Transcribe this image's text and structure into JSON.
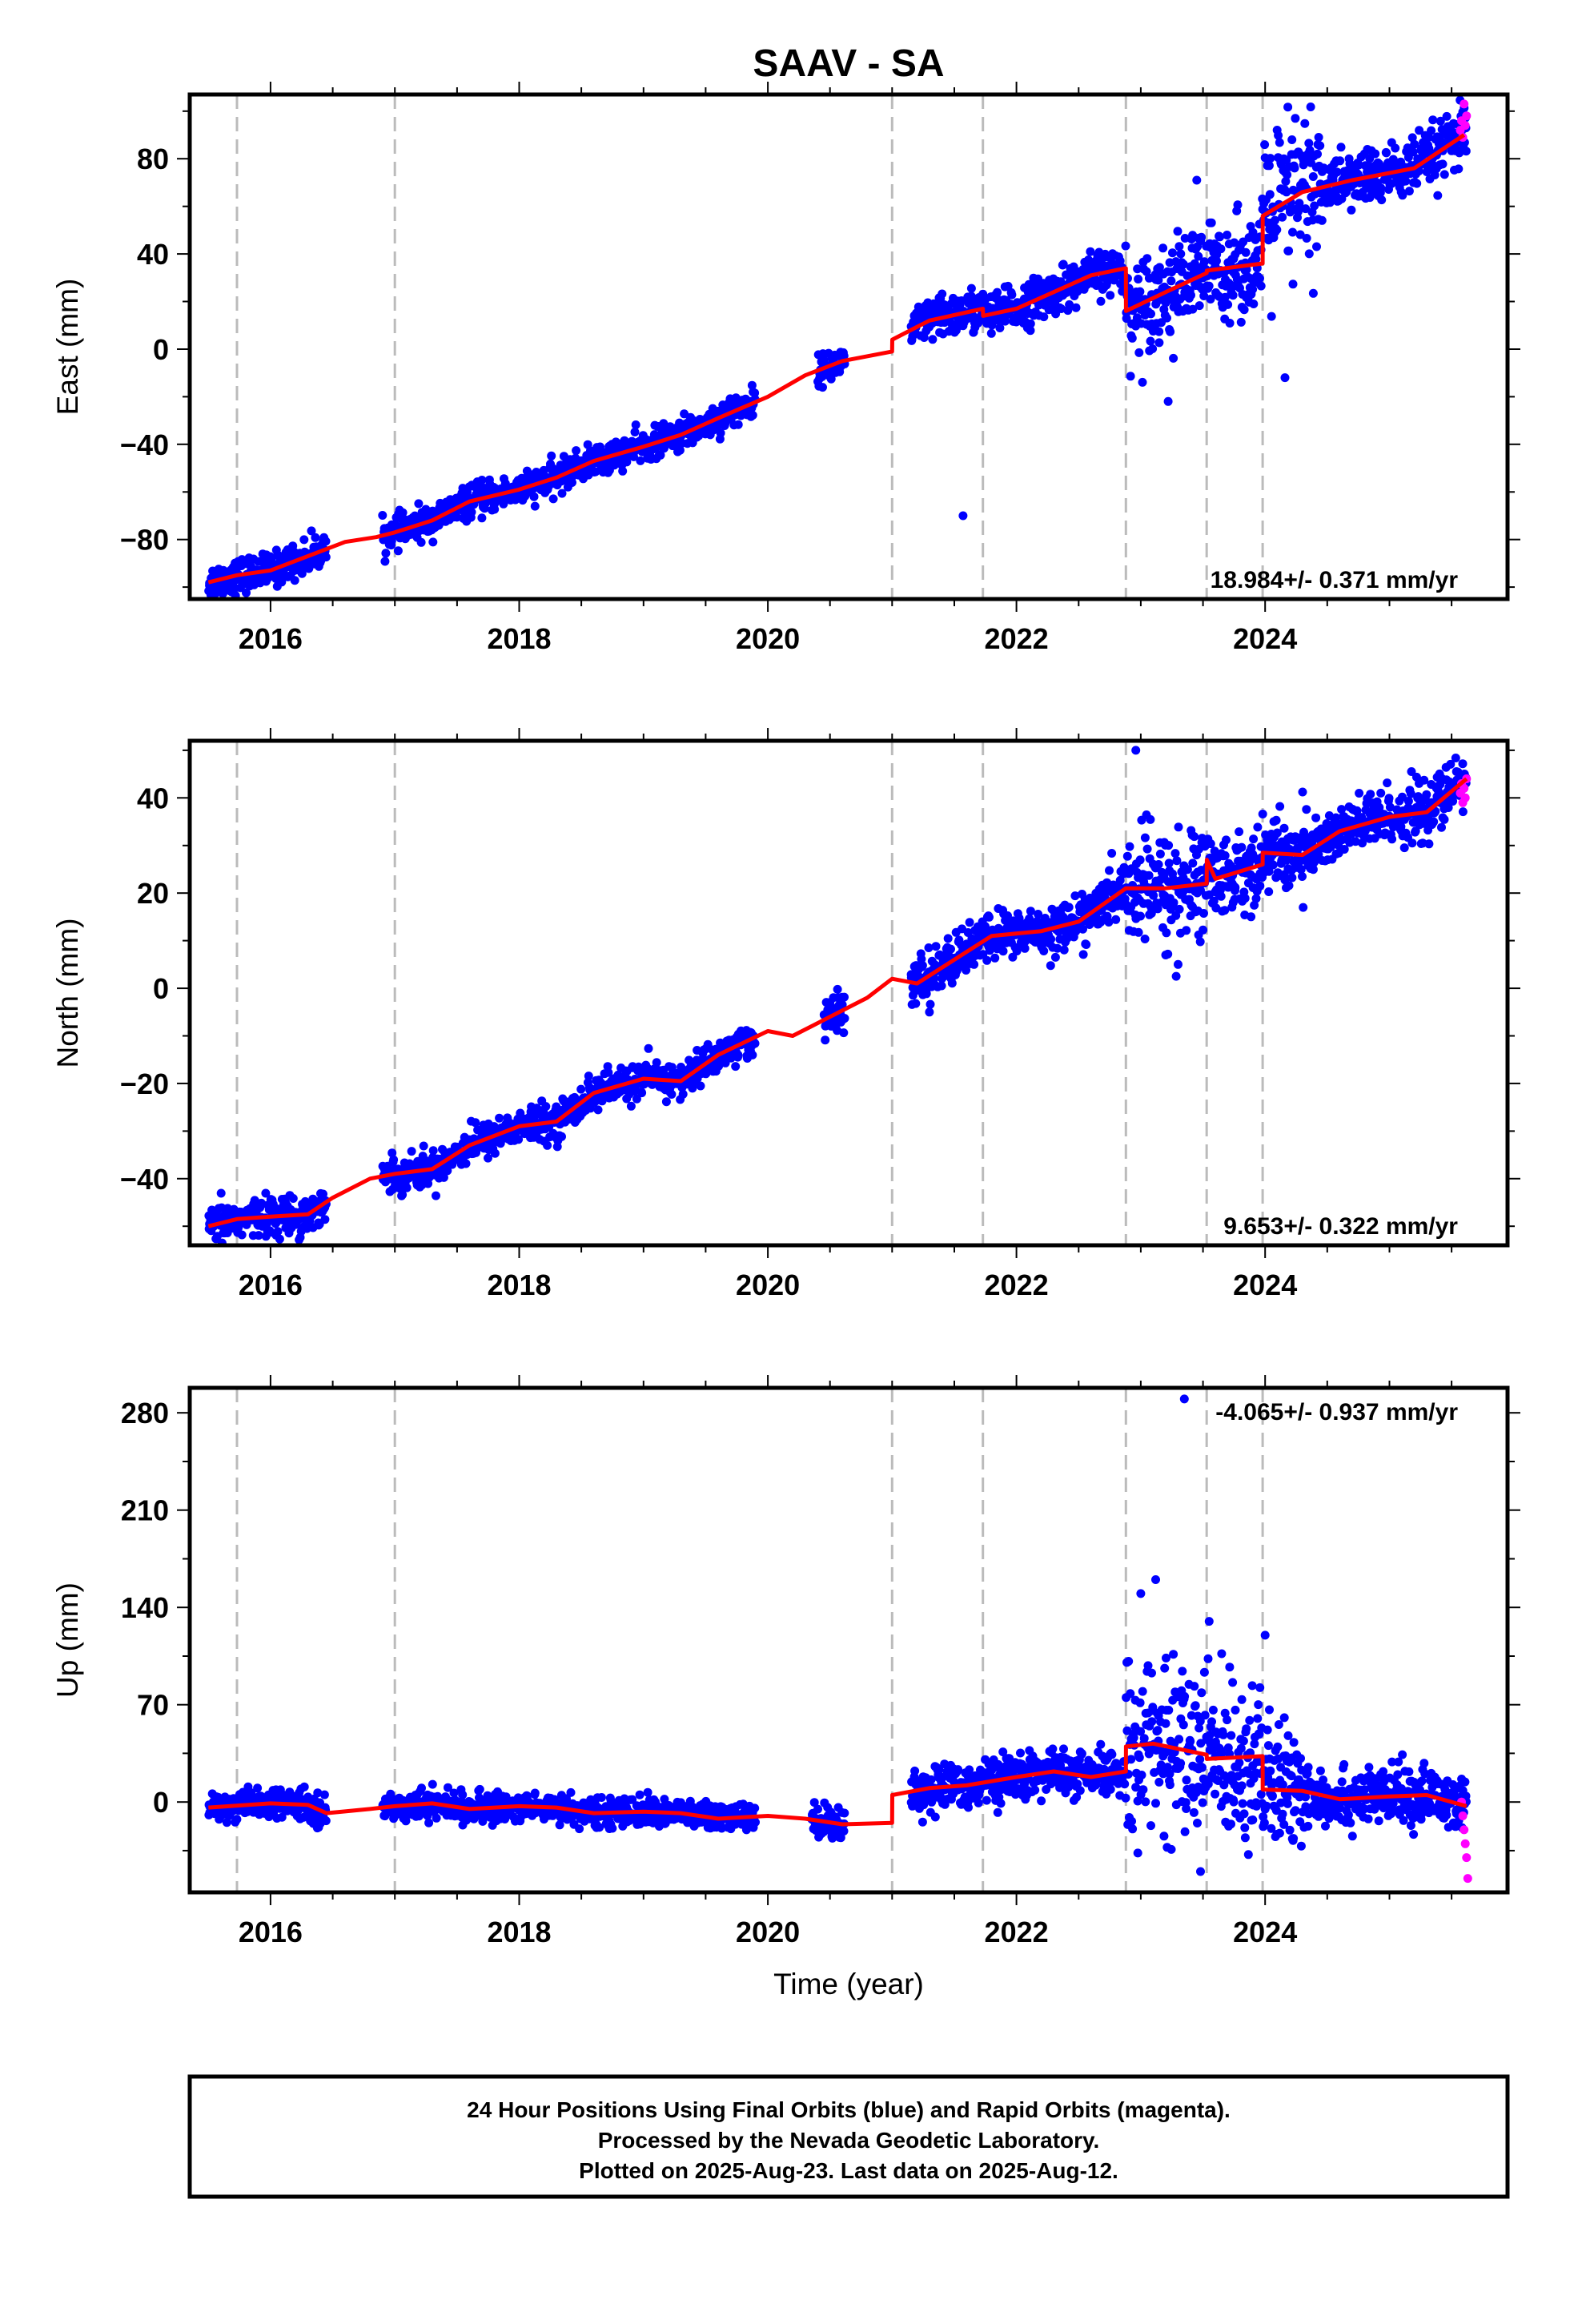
{
  "figure": {
    "title": "SAAV - SA",
    "x_axis_label": "Time (year)",
    "footer_lines": [
      "24 Hour Positions Using Final Orbits (blue) and Rapid Orbits (magenta).",
      "Processed by the Nevada Geodetic Laboratory.",
      "Plotted on 2025-Aug-23. Last data on 2025-Aug-12."
    ]
  },
  "colors": {
    "final_orbits": "#0000ff",
    "rapid_orbits": "#ff00ff",
    "model_fit": "#ff0000",
    "event_lines": "#bbbbbb",
    "frame": "#000000"
  },
  "chart_data": [
    {
      "type": "scatter",
      "component": "east",
      "ylabel": "East (mm)",
      "xlabel": "",
      "title": "",
      "xlim": [
        2015.35,
        2025.95
      ],
      "ylim": [
        -105,
        107
      ],
      "xticks": [
        "2016",
        "2018",
        "2020",
        "2022",
        "2024"
      ],
      "yticks": [
        "−80",
        "−40",
        "0",
        "40",
        "80"
      ],
      "ytick_values": [
        -80,
        -40,
        0,
        40,
        80
      ],
      "rate_label": "18.984+/- 0.371 mm/yr",
      "rate_position": "bottom-right",
      "event_lines": [
        2015.73,
        2017.0,
        2021.0,
        2021.73,
        2022.88,
        2023.53,
        2023.98
      ],
      "model_knots": [
        [
          2015.5,
          -98
        ],
        [
          2015.73,
          -95
        ],
        [
          2016.0,
          -93
        ],
        [
          2016.3,
          -87
        ],
        [
          2016.6,
          -81
        ],
        [
          2016.85,
          -79
        ],
        [
          2017.0,
          -77
        ],
        [
          2017.3,
          -72
        ],
        [
          2017.6,
          -64
        ],
        [
          2018.0,
          -59
        ],
        [
          2018.3,
          -54
        ],
        [
          2018.6,
          -47
        ],
        [
          2019.0,
          -41
        ],
        [
          2019.3,
          -36
        ],
        [
          2019.6,
          -29
        ],
        [
          2020.0,
          -20
        ],
        [
          2020.3,
          -11
        ],
        [
          2020.6,
          -5
        ],
        [
          2021.0,
          -1
        ],
        [
          2021.001,
          4
        ],
        [
          2021.3,
          12
        ],
        [
          2021.73,
          17
        ],
        [
          2021.731,
          14
        ],
        [
          2022.0,
          17
        ],
        [
          2022.3,
          24
        ],
        [
          2022.6,
          31
        ],
        [
          2022.88,
          34
        ],
        [
          2022.881,
          16
        ],
        [
          2023.2,
          24
        ],
        [
          2023.53,
          32
        ],
        [
          2023.531,
          33
        ],
        [
          2023.98,
          36
        ],
        [
          2023.981,
          56
        ],
        [
          2024.3,
          66
        ],
        [
          2024.7,
          71
        ],
        [
          2025.2,
          76
        ],
        [
          2025.6,
          90
        ]
      ],
      "scatter_segments": [
        {
          "start": 2015.5,
          "end": 2016.45,
          "spread": 3.5
        },
        {
          "start": 2016.9,
          "end": 2019.9,
          "spread": 3.2
        },
        {
          "start": 2020.4,
          "end": 2020.62,
          "spread": 3
        },
        {
          "start": 2021.15,
          "end": 2022.88,
          "spread": 4.5
        },
        {
          "start": 2022.88,
          "end": 2023.98,
          "spread": 10
        },
        {
          "start": 2023.98,
          "end": 2024.45,
          "spread": 18
        },
        {
          "start": 2024.45,
          "end": 2025.62,
          "spread": 6
        }
      ],
      "outliers": [
        [
          2021.57,
          -70
        ],
        [
          2023.22,
          -22
        ],
        [
          2023.45,
          71
        ],
        [
          2024.16,
          -12
        ]
      ],
      "rapid_points": [
        [
          2025.57,
          92
        ],
        [
          2025.58,
          96
        ],
        [
          2025.59,
          89
        ],
        [
          2025.6,
          103
        ],
        [
          2025.61,
          94
        ],
        [
          2025.62,
          98
        ]
      ]
    },
    {
      "type": "scatter",
      "component": "north",
      "ylabel": "North (mm)",
      "xlabel": "",
      "title": "",
      "xlim": [
        2015.35,
        2025.95
      ],
      "ylim": [
        -54,
        52
      ],
      "xticks": [
        "2016",
        "2018",
        "2020",
        "2022",
        "2024"
      ],
      "yticks": [
        "−40",
        "−20",
        "0",
        "20",
        "40"
      ],
      "ytick_values": [
        -40,
        -20,
        0,
        20,
        40
      ],
      "rate_label": "9.653+/- 0.322 mm/yr",
      "rate_position": "bottom-right",
      "event_lines": [
        2015.73,
        2017.0,
        2021.0,
        2021.73,
        2022.88,
        2023.53,
        2023.98
      ],
      "model_knots": [
        [
          2015.5,
          -50
        ],
        [
          2015.73,
          -48.5
        ],
        [
          2016.0,
          -48
        ],
        [
          2016.3,
          -47.5
        ],
        [
          2016.5,
          -44
        ],
        [
          2016.8,
          -40
        ],
        [
          2017.0,
          -39
        ],
        [
          2017.3,
          -38
        ],
        [
          2017.6,
          -33
        ],
        [
          2018.0,
          -29
        ],
        [
          2018.3,
          -28
        ],
        [
          2018.6,
          -22
        ],
        [
          2019.0,
          -19
        ],
        [
          2019.3,
          -19.5
        ],
        [
          2019.6,
          -14
        ],
        [
          2020.0,
          -9
        ],
        [
          2020.2,
          -10
        ],
        [
          2020.5,
          -6
        ],
        [
          2020.8,
          -2
        ],
        [
          2021.0,
          2
        ],
        [
          2021.2,
          1
        ],
        [
          2021.5,
          6
        ],
        [
          2021.8,
          11
        ],
        [
          2022.2,
          12
        ],
        [
          2022.5,
          14
        ],
        [
          2022.88,
          21
        ],
        [
          2023.2,
          21
        ],
        [
          2023.53,
          22
        ],
        [
          2023.531,
          27
        ],
        [
          2023.6,
          23
        ],
        [
          2023.98,
          26
        ],
        [
          2023.981,
          28.5
        ],
        [
          2024.3,
          28
        ],
        [
          2024.6,
          33
        ],
        [
          2025.0,
          36
        ],
        [
          2025.3,
          37
        ],
        [
          2025.62,
          44
        ]
      ],
      "scatter_segments": [
        {
          "start": 2015.5,
          "end": 2016.45,
          "spread": 2
        },
        {
          "start": 2016.9,
          "end": 2019.9,
          "spread": 1.8
        },
        {
          "start": 2020.45,
          "end": 2020.62,
          "spread": 2
        },
        {
          "start": 2021.15,
          "end": 2022.88,
          "spread": 2.5
        },
        {
          "start": 2022.88,
          "end": 2023.53,
          "spread": 6
        },
        {
          "start": 2023.53,
          "end": 2024.35,
          "spread": 4
        },
        {
          "start": 2024.35,
          "end": 2025.62,
          "spread": 3
        }
      ],
      "outliers": [
        [
          2021.3,
          -5
        ],
        [
          2022.96,
          50
        ],
        [
          2023.2,
          7
        ],
        [
          2023.3,
          5
        ]
      ],
      "rapid_points": [
        [
          2025.57,
          41
        ],
        [
          2025.58,
          43
        ],
        [
          2025.59,
          39
        ],
        [
          2025.6,
          42
        ],
        [
          2025.61,
          40
        ],
        [
          2025.62,
          44
        ]
      ]
    },
    {
      "type": "scatter",
      "component": "up",
      "ylabel": "Up (mm)",
      "xlabel": "Time (year)",
      "title": "",
      "xlim": [
        2015.35,
        2025.95
      ],
      "ylim": [
        -65,
        298
      ],
      "xticks": [
        "2016",
        "2018",
        "2020",
        "2022",
        "2024"
      ],
      "yticks": [
        "0",
        "70",
        "140",
        "210",
        "280"
      ],
      "ytick_values": [
        0,
        70,
        140,
        210,
        280
      ],
      "rate_label": "-4.065+/- 0.937 mm/yr",
      "rate_position": "top-right",
      "event_lines": [
        2015.73,
        2017.0,
        2021.0,
        2021.73,
        2022.88,
        2023.53,
        2023.98
      ],
      "model_knots": [
        [
          2015.5,
          -4
        ],
        [
          2016.0,
          -1
        ],
        [
          2016.3,
          -2
        ],
        [
          2016.45,
          -8
        ],
        [
          2016.8,
          -5
        ],
        [
          2017.0,
          -3
        ],
        [
          2017.3,
          -1
        ],
        [
          2017.6,
          -5
        ],
        [
          2018.0,
          -3
        ],
        [
          2018.3,
          -4
        ],
        [
          2018.6,
          -8
        ],
        [
          2019.0,
          -7
        ],
        [
          2019.3,
          -8
        ],
        [
          2019.6,
          -12
        ],
        [
          2020.0,
          -10
        ],
        [
          2020.3,
          -12
        ],
        [
          2020.6,
          -16
        ],
        [
          2021.0,
          -15
        ],
        [
          2021.001,
          5
        ],
        [
          2021.3,
          10
        ],
        [
          2021.6,
          12
        ],
        [
          2022.0,
          18
        ],
        [
          2022.3,
          22
        ],
        [
          2022.6,
          18
        ],
        [
          2022.88,
          22
        ],
        [
          2022.881,
          40
        ],
        [
          2023.1,
          42
        ],
        [
          2023.53,
          34
        ],
        [
          2023.531,
          31
        ],
        [
          2023.98,
          33
        ],
        [
          2023.981,
          9
        ],
        [
          2024.3,
          8
        ],
        [
          2024.6,
          2
        ],
        [
          2025.0,
          4
        ],
        [
          2025.3,
          5
        ],
        [
          2025.62,
          -3
        ]
      ],
      "scatter_segments": [
        {
          "start": 2015.5,
          "end": 2016.45,
          "spread": 5
        },
        {
          "start": 2016.9,
          "end": 2019.9,
          "spread": 5
        },
        {
          "start": 2020.35,
          "end": 2020.62,
          "spread": 6
        },
        {
          "start": 2021.15,
          "end": 2022.88,
          "spread": 8
        },
        {
          "start": 2022.88,
          "end": 2023.98,
          "spread": 30
        },
        {
          "start": 2023.98,
          "end": 2024.35,
          "spread": 22
        },
        {
          "start": 2024.35,
          "end": 2025.62,
          "spread": 10
        }
      ],
      "outliers": [
        [
          2023.35,
          290
        ],
        [
          2023.12,
          160
        ],
        [
          2023.0,
          150
        ],
        [
          2023.48,
          -50
        ],
        [
          2023.55,
          130
        ],
        [
          2024.0,
          120
        ]
      ],
      "rapid_points": [
        [
          2025.58,
          0
        ],
        [
          2025.59,
          -10
        ],
        [
          2025.6,
          -20
        ],
        [
          2025.61,
          -30
        ],
        [
          2025.62,
          -40
        ],
        [
          2025.63,
          -55
        ]
      ]
    }
  ]
}
